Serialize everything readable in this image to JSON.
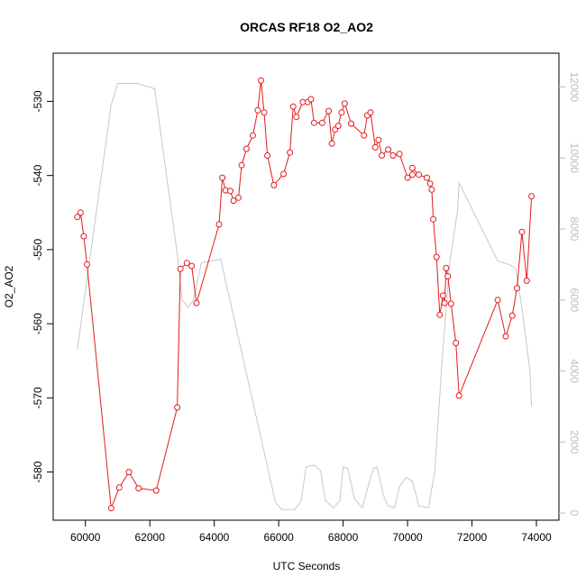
{
  "chart_data": {
    "type": "line",
    "title": "ORCAS RF18 O2_AO2",
    "xlabel": "UTC Seconds",
    "ylabel": "O2_AO2",
    "xlim": [
      59000,
      74700
    ],
    "ylim": [
      -586.5,
      -523.5
    ],
    "y2lim": [
      -200,
      12950
    ],
    "x_ticks": [
      60000,
      62000,
      64000,
      66000,
      68000,
      70000,
      72000,
      74000
    ],
    "y_ticks": [
      -580,
      -570,
      -560,
      -550,
      -540,
      -530
    ],
    "y2_ticks": [
      0,
      2000,
      4000,
      6000,
      8000,
      10000,
      12000
    ],
    "grid": false,
    "colors": {
      "primary": "#e41a1c",
      "secondary": "#c8c8c8",
      "axis": "#000000",
      "right_axis": "#bdbdbd"
    },
    "series": [
      {
        "axis": "left",
        "points": [
          [
            59750,
            -545.6
          ],
          [
            59850,
            -545.0
          ],
          [
            59950,
            -548.2
          ],
          [
            60050,
            -552.0
          ],
          [
            60800,
            -584.9
          ],
          [
            61050,
            -582.1
          ],
          [
            61350,
            -580.0
          ],
          [
            61650,
            -582.2
          ],
          [
            62200,
            -582.5
          ],
          [
            62850,
            -571.3
          ],
          [
            62950,
            -552.6
          ],
          [
            63150,
            -551.8
          ],
          [
            63300,
            -552.2
          ],
          [
            63450,
            -557.2
          ],
          [
            64150,
            -546.6
          ],
          [
            64250,
            -540.3
          ],
          [
            64350,
            -542.0
          ],
          [
            64500,
            -542.1
          ],
          [
            64600,
            -543.4
          ],
          [
            64750,
            -543.0
          ],
          [
            64850,
            -538.6
          ],
          [
            65000,
            -536.4
          ],
          [
            65200,
            -534.6
          ],
          [
            65350,
            -531.2
          ],
          [
            65450,
            -527.2
          ],
          [
            65550,
            -531.5
          ],
          [
            65650,
            -537.3
          ],
          [
            65850,
            -541.3
          ],
          [
            66150,
            -539.8
          ],
          [
            66350,
            -536.9
          ],
          [
            66450,
            -530.7
          ],
          [
            66550,
            -532.1
          ],
          [
            66750,
            -530.1
          ],
          [
            66900,
            -530.1
          ],
          [
            67000,
            -529.7
          ],
          [
            67100,
            -532.9
          ],
          [
            67350,
            -532.9
          ],
          [
            67550,
            -531.3
          ],
          [
            67650,
            -535.7
          ],
          [
            67750,
            -533.8
          ],
          [
            67850,
            -533.3
          ],
          [
            67950,
            -531.5
          ],
          [
            68050,
            -530.3
          ],
          [
            68250,
            -533.0
          ],
          [
            68650,
            -534.6
          ],
          [
            68750,
            -531.9
          ],
          [
            68850,
            -531.5
          ],
          [
            69000,
            -536.2
          ],
          [
            69100,
            -535.2
          ],
          [
            69200,
            -537.3
          ],
          [
            69400,
            -536.5
          ],
          [
            69550,
            -537.3
          ],
          [
            69750,
            -537.1
          ],
          [
            70000,
            -540.3
          ],
          [
            70150,
            -539.9
          ],
          [
            70150,
            -539.0
          ],
          [
            70350,
            -539.9
          ],
          [
            70600,
            -540.3
          ],
          [
            70700,
            -541.1
          ],
          [
            70750,
            -541.9
          ],
          [
            70800,
            -545.9
          ],
          [
            70900,
            -551.0
          ],
          [
            71000,
            -558.8
          ],
          [
            71100,
            -556.2
          ],
          [
            71150,
            -557.2
          ],
          [
            71200,
            -552.5
          ],
          [
            71250,
            -553.6
          ],
          [
            71350,
            -557.3
          ],
          [
            71500,
            -562.6
          ],
          [
            71600,
            -569.7
          ],
          [
            72800,
            -556.8
          ],
          [
            73050,
            -561.7
          ],
          [
            73250,
            -558.9
          ],
          [
            73400,
            -555.2
          ],
          [
            73550,
            -547.6
          ],
          [
            73700,
            -554.2
          ],
          [
            73850,
            -542.8
          ]
        ]
      },
      {
        "axis": "right",
        "points": [
          [
            59750,
            4600
          ],
          [
            60800,
            11500
          ],
          [
            61000,
            12100
          ],
          [
            61600,
            12100
          ],
          [
            62150,
            11950
          ],
          [
            62850,
            7300
          ],
          [
            63000,
            6000
          ],
          [
            63200,
            5800
          ],
          [
            63350,
            6000
          ],
          [
            63600,
            7050
          ],
          [
            64000,
            7120
          ],
          [
            64200,
            7150
          ],
          [
            65900,
            300
          ],
          [
            66100,
            100
          ],
          [
            66500,
            100
          ],
          [
            66700,
            350
          ],
          [
            66850,
            1300
          ],
          [
            67100,
            1350
          ],
          [
            67300,
            1200
          ],
          [
            67450,
            350
          ],
          [
            67700,
            150
          ],
          [
            67900,
            350
          ],
          [
            68000,
            1300
          ],
          [
            68150,
            1250
          ],
          [
            68350,
            400
          ],
          [
            68600,
            150
          ],
          [
            68850,
            1000
          ],
          [
            68950,
            1250
          ],
          [
            69050,
            1300
          ],
          [
            69250,
            500
          ],
          [
            69400,
            200
          ],
          [
            69600,
            150
          ],
          [
            69750,
            750
          ],
          [
            69950,
            1000
          ],
          [
            70150,
            900
          ],
          [
            70350,
            200
          ],
          [
            70650,
            150
          ],
          [
            70850,
            1200
          ],
          [
            71050,
            4000
          ],
          [
            71300,
            7000
          ],
          [
            71550,
            8500
          ],
          [
            71600,
            9300
          ],
          [
            72800,
            7100
          ],
          [
            73150,
            7000
          ],
          [
            73350,
            6900
          ],
          [
            73550,
            5800
          ],
          [
            73800,
            4000
          ],
          [
            73850,
            3000
          ]
        ]
      }
    ]
  }
}
